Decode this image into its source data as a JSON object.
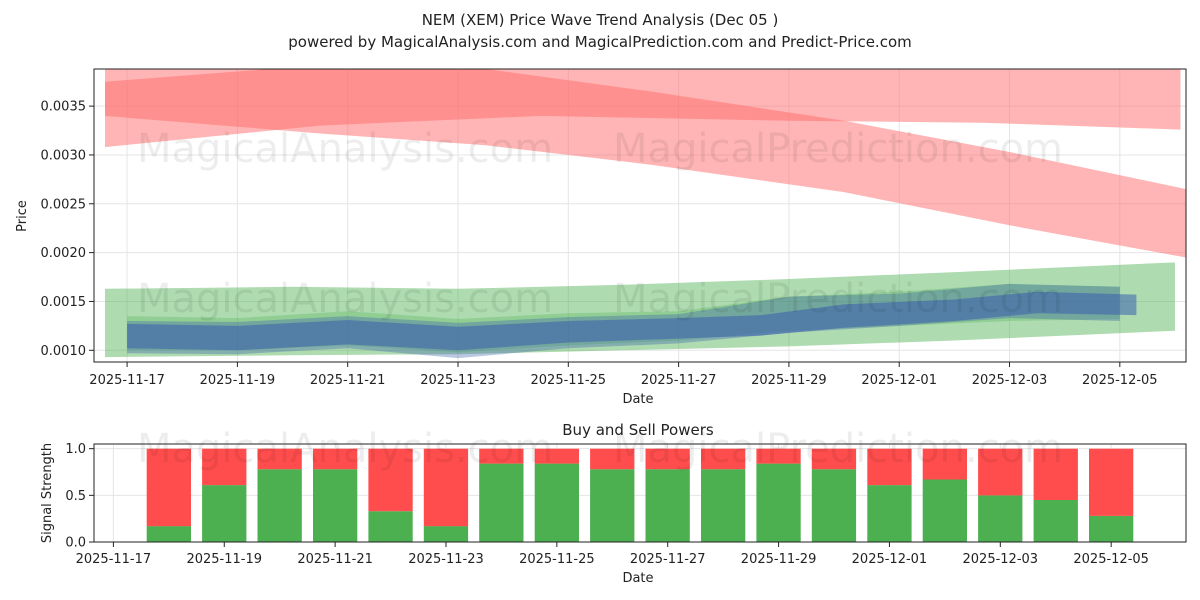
{
  "title_line1": "NEM (XEM) Price Wave Trend Analysis (Dec 05 )",
  "title_line2": "powered by MagicalAnalysis.com and MagicalPrediction.com and Predict-Price.com",
  "watermarks": [
    "MagicalAnalysis.com",
    "MagicalPrediction.com"
  ],
  "colors": {
    "red_band": "#ff6b6b",
    "green_band": "#4caf50",
    "blue_band": "#3a5fb0",
    "buy": "#4caf50",
    "sell": "#ff4d4d",
    "grid": "#e5e5e5"
  },
  "chart_data": [
    {
      "type": "area",
      "name": "price-wave-chart",
      "xlabel": "Date",
      "ylabel": "Price",
      "x_tick_labels": [
        "2025-11-17",
        "2025-11-19",
        "2025-11-21",
        "2025-11-23",
        "2025-11-25",
        "2025-11-27",
        "2025-11-29",
        "2025-12-01",
        "2025-12-03",
        "2025-12-05"
      ],
      "x_tick_days": [
        0,
        2,
        4,
        6,
        8,
        10,
        12,
        14,
        16,
        18
      ],
      "x_range_days": [
        -0.6,
        19.2
      ],
      "y_ticks": [
        0.001,
        0.0015,
        0.002,
        0.0025,
        0.003,
        0.0035
      ],
      "y_tick_labels": [
        "0.0010",
        "0.0015",
        "0.0020",
        "0.0025",
        "0.0030",
        "0.0035"
      ],
      "ylim": [
        0.00088,
        0.00388
      ],
      "grid": true,
      "bands": [
        {
          "name": "red-band-upper",
          "color": "red",
          "opacity": 0.5,
          "points": [
            [
              -0.4,
              0.00388,
              0.00308
            ],
            [
              3.5,
              0.00395,
              0.0033
            ],
            [
              7.5,
              0.00395,
              0.0034
            ],
            [
              12,
              0.0039,
              0.00335
            ],
            [
              15.5,
              0.00388,
              0.00333
            ],
            [
              19.1,
              0.00388,
              0.00326
            ]
          ]
        },
        {
          "name": "red-band-lower",
          "color": "red",
          "opacity": 0.5,
          "points": [
            [
              -0.4,
              0.00375,
              0.0034
            ],
            [
              3.5,
              0.00392,
              0.00322
            ],
            [
              6.5,
              0.00388,
              0.0031
            ],
            [
              9.5,
              0.00365,
              0.0029
            ],
            [
              13,
              0.00335,
              0.00262
            ],
            [
              16,
              0.00303,
              0.00228
            ],
            [
              19.2,
              0.00265,
              0.00195
            ]
          ]
        },
        {
          "name": "green-band-wide",
          "color": "green",
          "opacity": 0.45,
          "points": [
            [
              -0.4,
              0.00163,
              0.00093
            ],
            [
              3,
              0.00165,
              0.00095
            ],
            [
              6,
              0.00163,
              0.00096
            ],
            [
              9,
              0.00167,
              0.001
            ],
            [
              12,
              0.00173,
              0.00104
            ],
            [
              15,
              0.0018,
              0.0011
            ],
            [
              19,
              0.0019,
              0.0012
            ]
          ]
        },
        {
          "name": "green-band-mid",
          "color": "green",
          "opacity": 0.3,
          "points": [
            [
              0,
              0.00135,
              0.001
            ],
            [
              2,
              0.00133,
              0.001
            ],
            [
              4,
              0.0014,
              0.00105
            ],
            [
              6,
              0.00132,
              0.00098
            ],
            [
              8,
              0.00138,
              0.00105
            ],
            [
              10,
              0.0014,
              0.0011
            ],
            [
              12,
              0.00155,
              0.0012
            ],
            [
              14,
              0.0016,
              0.00125
            ],
            [
              16,
              0.00168,
              0.0013
            ],
            [
              18,
              0.00165,
              0.00132
            ]
          ]
        },
        {
          "name": "blue-band-outer",
          "color": "blue",
          "opacity": 0.35,
          "points": [
            [
              0,
              0.0013,
              0.00097
            ],
            [
              2,
              0.00129,
              0.00096
            ],
            [
              4,
              0.00135,
              0.00102
            ],
            [
              6,
              0.00128,
              0.00092
            ],
            [
              8,
              0.00134,
              0.00102
            ],
            [
              10,
              0.00137,
              0.00107
            ],
            [
              12,
              0.00155,
              0.00118
            ],
            [
              14,
              0.00158,
              0.00125
            ],
            [
              16,
              0.00168,
              0.00133
            ],
            [
              18,
              0.00165,
              0.0013
            ]
          ]
        },
        {
          "name": "blue-band-core",
          "color": "blue",
          "opacity": 0.55,
          "points": [
            [
              0,
              0.00127,
              0.00102
            ],
            [
              2,
              0.00125,
              0.001
            ],
            [
              4,
              0.00131,
              0.00106
            ],
            [
              6,
              0.00124,
              0.001
            ],
            [
              8,
              0.0013,
              0.00108
            ],
            [
              10,
              0.00133,
              0.00112
            ],
            [
              11.5,
              0.00136,
              0.00115
            ],
            [
              13,
              0.00147,
              0.00123
            ],
            [
              15,
              0.00152,
              0.0013
            ],
            [
              16.5,
              0.0016,
              0.00138
            ],
            [
              18.3,
              0.00157,
              0.00136
            ]
          ]
        }
      ]
    },
    {
      "type": "bar",
      "name": "buy-sell-chart",
      "title": "Buy and Sell Powers",
      "xlabel": "Date",
      "ylabel": "Signal Strength",
      "x_tick_labels": [
        "2025-11-17",
        "2025-11-19",
        "2025-11-21",
        "2025-11-23",
        "2025-11-25",
        "2025-11-27",
        "2025-11-29",
        "2025-12-01",
        "2025-12-03",
        "2025-12-05"
      ],
      "x_tick_days": [
        0,
        2,
        4,
        6,
        8,
        10,
        12,
        14,
        16,
        18
      ],
      "x_range_days": [
        -0.35,
        19.35
      ],
      "y_ticks": [
        0.0,
        0.5,
        1.0
      ],
      "y_tick_labels": [
        "0.0",
        "0.5",
        "1.0"
      ],
      "ylim": [
        0,
        1.05
      ],
      "bar_days": [
        1,
        2,
        3,
        4,
        5,
        6,
        7,
        8,
        9,
        10,
        11,
        12,
        13,
        14,
        15,
        16,
        17,
        18
      ],
      "series": [
        {
          "name": "Buy",
          "values": [
            0.17,
            0.61,
            0.78,
            0.78,
            0.33,
            0.17,
            0.84,
            0.84,
            0.78,
            0.78,
            0.78,
            0.84,
            0.78,
            0.61,
            0.67,
            0.5,
            0.45,
            0.28
          ]
        },
        {
          "name": "Sell",
          "values": [
            0.83,
            0.39,
            0.22,
            0.22,
            0.67,
            0.83,
            0.16,
            0.16,
            0.22,
            0.22,
            0.22,
            0.16,
            0.22,
            0.39,
            0.33,
            0.5,
            0.55,
            0.72
          ]
        }
      ]
    }
  ]
}
